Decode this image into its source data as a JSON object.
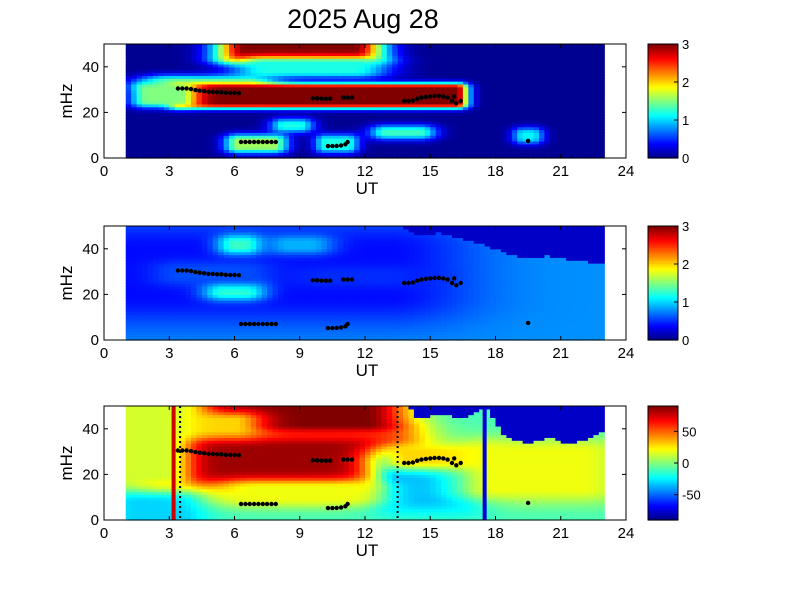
{
  "figure": {
    "title": "2025 Aug 28"
  },
  "chart_data": [
    {
      "type": "heatmap",
      "title": "",
      "xlabel": "UT",
      "ylabel": "mHz",
      "xlim": [
        0,
        24
      ],
      "ylim": [
        0,
        50
      ],
      "xticks": [
        0,
        3,
        6,
        9,
        12,
        15,
        18,
        21,
        24
      ],
      "yticks": [
        0,
        20,
        40
      ],
      "data_xrange": [
        1,
        23
      ],
      "colorbar": {
        "range": [
          0,
          3
        ],
        "ticks": [
          0,
          1,
          2,
          3
        ]
      },
      "background_value": 0.05,
      "features": [
        {
          "x": [
            6.5,
            11.5
          ],
          "y": [
            44,
            50
          ],
          "value": 3.0,
          "spread": [
            1.0,
            2.0
          ]
        },
        {
          "x": [
            7.5,
            11.5
          ],
          "y": [
            38,
            42
          ],
          "value": 1.2,
          "spread": [
            1.2,
            2.0
          ]
        },
        {
          "x": [
            3.0,
            6.5
          ],
          "y": [
            33,
            34
          ],
          "value": 1.3,
          "spread": [
            1.0,
            2.0
          ]
        },
        {
          "x": [
            3.5,
            16.2
          ],
          "y": [
            24,
            31
          ],
          "value": 3.0,
          "spread": [
            0.4,
            1.5
          ]
        },
        {
          "x": [
            2.0,
            3.5
          ],
          "y": [
            25,
            31
          ],
          "value": 1.5,
          "spread": [
            0.6,
            2.0
          ]
        },
        {
          "x": [
            6.2,
            7.8
          ],
          "y": [
            5,
            8
          ],
          "value": 1.6,
          "spread": [
            0.5,
            2.0
          ]
        },
        {
          "x": [
            10.2,
            11.2
          ],
          "y": [
            5,
            8
          ],
          "value": 1.2,
          "spread": [
            0.4,
            2.0
          ]
        },
        {
          "x": [
            8.3,
            9.0
          ],
          "y": [
            14,
            15
          ],
          "value": 1.2,
          "spread": [
            0.5,
            2.0
          ]
        },
        {
          "x": [
            13.0,
            14.5
          ],
          "y": [
            11,
            12
          ],
          "value": 1.3,
          "spread": [
            0.6,
            2.0
          ]
        },
        {
          "x": [
            19.3,
            19.7
          ],
          "y": [
            9,
            11
          ],
          "value": 1.1,
          "spread": [
            0.4,
            2.0
          ]
        }
      ]
    },
    {
      "type": "heatmap",
      "title": "",
      "xlabel": "UT",
      "ylabel": "mHz",
      "xlim": [
        0,
        24
      ],
      "ylim": [
        0,
        50
      ],
      "xticks": [
        0,
        3,
        6,
        9,
        12,
        15,
        18,
        21,
        24
      ],
      "yticks": [
        0,
        20,
        40
      ],
      "data_xrange": [
        1,
        23
      ],
      "colorbar": {
        "range": [
          0,
          3
        ],
        "ticks": [
          0,
          1,
          2,
          3
        ]
      },
      "background_value": 0.8,
      "features": [
        {
          "x": [
            1,
            13
          ],
          "y": [
            20,
            40
          ],
          "value": 0.4,
          "spread": [
            3.0,
            10.0
          ]
        },
        {
          "x": [
            6.0,
            6.5
          ],
          "y": [
            41,
            43
          ],
          "value": 1.3,
          "spread": [
            0.6,
            2.5
          ]
        },
        {
          "x": [
            8.5,
            9.5
          ],
          "y": [
            41,
            43
          ],
          "value": 0.9,
          "spread": [
            0.8,
            2.5
          ]
        },
        {
          "x": [
            5.5,
            6.5
          ],
          "y": [
            21,
            23
          ],
          "value": 1.3,
          "spread": [
            0.7,
            2.5
          ]
        },
        {
          "x": [
            3.5,
            6.5
          ],
          "y": [
            28,
            31
          ],
          "value": 0.6,
          "spread": [
            1.0,
            3.0
          ]
        },
        {
          "x": [
            10.5,
            13.0
          ],
          "y": [
            27,
            29
          ],
          "value": 0.5,
          "spread": [
            1.5,
            3.0
          ]
        }
      ],
      "mask": {
        "from_x": 13.5,
        "points": [
          [
            13.5,
            50
          ],
          [
            14.5,
            46
          ],
          [
            15.5,
            47
          ],
          [
            16.5,
            44
          ],
          [
            17.5,
            42
          ],
          [
            18.5,
            38
          ],
          [
            19.5,
            36
          ],
          [
            20.5,
            37
          ],
          [
            21.5,
            35
          ],
          [
            22.5,
            34
          ],
          [
            23.0,
            33
          ]
        ]
      }
    },
    {
      "type": "heatmap",
      "title": "",
      "xlabel": "UT",
      "ylabel": "mHz",
      "xlim": [
        0,
        24
      ],
      "ylim": [
        0,
        50
      ],
      "xticks": [
        0,
        3,
        6,
        9,
        12,
        15,
        18,
        21,
        24
      ],
      "yticks": [
        0,
        20,
        40
      ],
      "data_xrange": [
        1,
        23
      ],
      "colorbar": {
        "range": [
          -90,
          90
        ],
        "ticks": [
          50,
          0,
          -50
        ]
      },
      "background_value": -10,
      "features": [
        {
          "x": [
            3,
            13
          ],
          "y": [
            20,
            32
          ],
          "value": 85,
          "spread": [
            1.5,
            6.0
          ]
        },
        {
          "x": [
            6,
            12
          ],
          "y": [
            42,
            50
          ],
          "value": 90,
          "spread": [
            1.5,
            3.0
          ]
        },
        {
          "x": [
            3.5,
            6
          ],
          "y": [
            40,
            44
          ],
          "value": 30,
          "spread": [
            1.0,
            3.0
          ]
        },
        {
          "x": [
            1,
            3
          ],
          "y": [
            20,
            50
          ],
          "value": 15,
          "spread": [
            0.8,
            5.0
          ]
        },
        {
          "x": [
            1.5,
            3.5
          ],
          "y": [
            0,
            8
          ],
          "value": -30,
          "spread": [
            1.0,
            4.0
          ]
        },
        {
          "x": [
            13.5,
            16.5
          ],
          "y": [
            10,
            25
          ],
          "value": -40,
          "spread": [
            1.0,
            5.0
          ]
        },
        {
          "x": [
            14,
            17
          ],
          "y": [
            26,
            30
          ],
          "value": 30,
          "spread": [
            1.0,
            3.0
          ]
        },
        {
          "x": [
            18,
            22
          ],
          "y": [
            14,
            30
          ],
          "value": 20,
          "spread": [
            1.5,
            5.0
          ]
        },
        {
          "x": [
            7,
            11
          ],
          "y": [
            10,
            14
          ],
          "value": 20,
          "spread": [
            1.5,
            3.0
          ]
        }
      ],
      "vlines": [
        {
          "x": 3.2,
          "color": "#cc0000",
          "style": "solid",
          "width": 4
        },
        {
          "x": 3.5,
          "color": "#000000",
          "style": "dotted",
          "width": 2
        },
        {
          "x": 13.5,
          "color": "#000000",
          "style": "dotted",
          "width": 2
        },
        {
          "x": 17.5,
          "color": "#0000dd",
          "style": "solid",
          "width": 4
        }
      ],
      "mask": {
        "from_x": 14.0,
        "points": [
          [
            14.0,
            50
          ],
          [
            14.5,
            44
          ],
          [
            15.5,
            47
          ],
          [
            16.5,
            44
          ],
          [
            17.5,
            50
          ],
          [
            18.5,
            36
          ],
          [
            19.5,
            34
          ],
          [
            20.5,
            36
          ],
          [
            21.5,
            33
          ],
          [
            22.5,
            37
          ],
          [
            23.0,
            40
          ]
        ]
      }
    }
  ],
  "marker_points": [
    [
      3.4,
      30.5
    ],
    [
      3.6,
      30.5
    ],
    [
      3.8,
      30.5
    ],
    [
      4.0,
      30.2
    ],
    [
      4.2,
      29.8
    ],
    [
      4.4,
      29.5
    ],
    [
      4.6,
      29.3
    ],
    [
      4.8,
      29.0
    ],
    [
      5.0,
      29.0
    ],
    [
      5.2,
      28.8
    ],
    [
      5.4,
      28.8
    ],
    [
      5.6,
      28.6
    ],
    [
      5.8,
      28.5
    ],
    [
      6.0,
      28.5
    ],
    [
      6.2,
      28.4
    ],
    [
      6.3,
      7.0
    ],
    [
      6.5,
      7.0
    ],
    [
      6.7,
      7.0
    ],
    [
      6.9,
      7.0
    ],
    [
      7.1,
      7.0
    ],
    [
      7.3,
      7.0
    ],
    [
      7.5,
      7.0
    ],
    [
      7.7,
      7.0
    ],
    [
      7.9,
      7.0
    ],
    [
      9.6,
      26.2
    ],
    [
      9.8,
      26.2
    ],
    [
      10.0,
      26.0
    ],
    [
      10.2,
      26.0
    ],
    [
      10.4,
      26.0
    ],
    [
      10.3,
      5.2
    ],
    [
      10.5,
      5.2
    ],
    [
      10.7,
      5.3
    ],
    [
      10.9,
      5.5
    ],
    [
      11.1,
      6.0
    ],
    [
      11.2,
      7.0
    ],
    [
      11.0,
      26.5
    ],
    [
      11.2,
      26.5
    ],
    [
      11.4,
      26.5
    ],
    [
      13.8,
      25.0
    ],
    [
      14.0,
      25.0
    ],
    [
      14.2,
      25.2
    ],
    [
      14.4,
      26.0
    ],
    [
      14.6,
      26.5
    ],
    [
      14.8,
      26.8
    ],
    [
      15.0,
      27.0
    ],
    [
      15.2,
      27.2
    ],
    [
      15.4,
      27.2
    ],
    [
      15.6,
      27.0
    ],
    [
      15.8,
      26.5
    ],
    [
      16.0,
      25.0
    ],
    [
      16.2,
      24.0
    ],
    [
      16.1,
      27.0
    ],
    [
      16.4,
      25.0
    ],
    [
      19.5,
      7.5
    ]
  ]
}
